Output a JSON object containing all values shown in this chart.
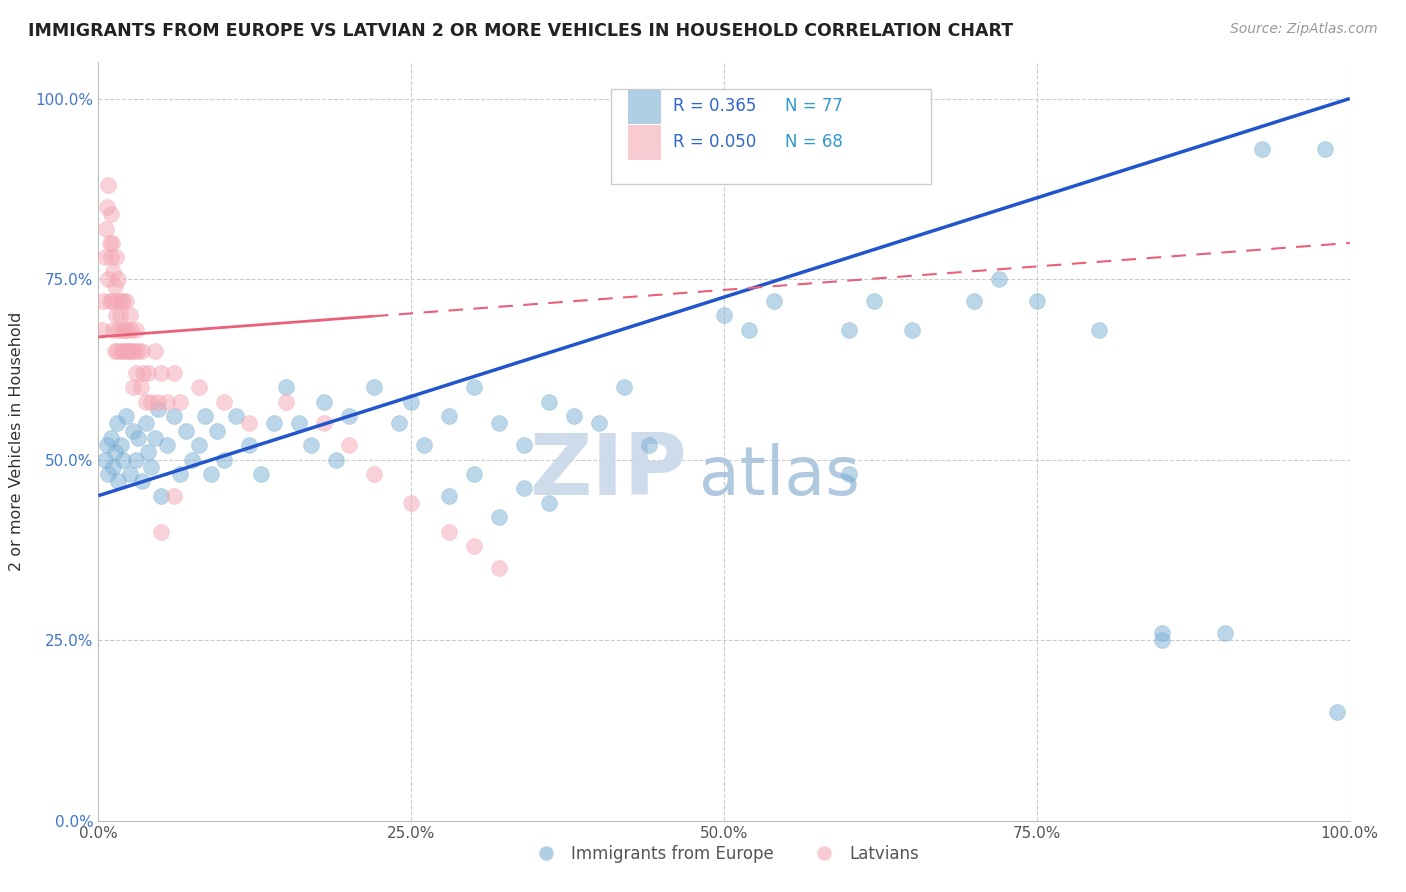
{
  "title": "IMMIGRANTS FROM EUROPE VS LATVIAN 2 OR MORE VEHICLES IN HOUSEHOLD CORRELATION CHART",
  "source": "Source: ZipAtlas.com",
  "ylabel": "2 or more Vehicles in Household",
  "xlim": [
    0.0,
    1.0
  ],
  "ylim": [
    0.0,
    1.05
  ],
  "xticks": [
    0.0,
    0.25,
    0.5,
    0.75,
    1.0
  ],
  "yticks": [
    0.0,
    0.25,
    0.5,
    0.75,
    1.0
  ],
  "xtick_labels": [
    "0.0%",
    "25.0%",
    "50.0%",
    "75.0%",
    "100.0%"
  ],
  "ytick_labels": [
    "0.0%",
    "25.0%",
    "50.0%",
    "75.0%",
    "100.0%"
  ],
  "blue_R": 0.365,
  "blue_N": 77,
  "pink_R": 0.05,
  "pink_N": 68,
  "blue_color": "#7BAFD4",
  "pink_color": "#F4A7B4",
  "blue_line_color": "#2255CC",
  "pink_line_color": "#E8607A",
  "legend_R_color": "#3366CC",
  "legend_N_color": "#3399CC",
  "watermark_ZIP": "#C8D8E8",
  "watermark_atlas": "#A8C4DC",
  "legend_labels": [
    "Immigrants from Europe",
    "Latvians"
  ],
  "figsize": [
    14.06,
    8.92
  ],
  "dpi": 100,
  "blue_x": [
    0.005,
    0.007,
    0.008,
    0.01,
    0.012,
    0.013,
    0.015,
    0.016,
    0.018,
    0.02,
    0.022,
    0.025,
    0.028,
    0.03,
    0.032,
    0.035,
    0.038,
    0.04,
    0.042,
    0.045,
    0.048,
    0.05,
    0.055,
    0.06,
    0.065,
    0.07,
    0.075,
    0.08,
    0.085,
    0.09,
    0.095,
    0.1,
    0.11,
    0.12,
    0.13,
    0.14,
    0.15,
    0.16,
    0.17,
    0.18,
    0.19,
    0.2,
    0.22,
    0.24,
    0.25,
    0.26,
    0.28,
    0.3,
    0.32,
    0.34,
    0.36,
    0.38,
    0.4,
    0.42,
    0.44,
    0.28,
    0.3,
    0.32,
    0.34,
    0.36,
    0.5,
    0.52,
    0.54,
    0.6,
    0.62,
    0.65,
    0.7,
    0.72,
    0.75,
    0.8,
    0.85,
    0.9,
    0.93,
    0.98,
    0.99,
    0.6,
    0.85
  ],
  "blue_y": [
    0.5,
    0.52,
    0.48,
    0.53,
    0.49,
    0.51,
    0.55,
    0.47,
    0.52,
    0.5,
    0.56,
    0.48,
    0.54,
    0.5,
    0.53,
    0.47,
    0.55,
    0.51,
    0.49,
    0.53,
    0.57,
    0.45,
    0.52,
    0.56,
    0.48,
    0.54,
    0.5,
    0.52,
    0.56,
    0.48,
    0.54,
    0.5,
    0.56,
    0.52,
    0.48,
    0.55,
    0.6,
    0.55,
    0.52,
    0.58,
    0.5,
    0.56,
    0.6,
    0.55,
    0.58,
    0.52,
    0.56,
    0.6,
    0.55,
    0.52,
    0.58,
    0.56,
    0.55,
    0.6,
    0.52,
    0.45,
    0.48,
    0.42,
    0.46,
    0.44,
    0.7,
    0.68,
    0.72,
    0.68,
    0.72,
    0.68,
    0.72,
    0.75,
    0.72,
    0.68,
    0.25,
    0.26,
    0.93,
    0.93,
    0.15,
    0.48,
    0.26
  ],
  "pink_x": [
    0.003,
    0.004,
    0.005,
    0.006,
    0.007,
    0.008,
    0.008,
    0.009,
    0.009,
    0.01,
    0.01,
    0.011,
    0.011,
    0.012,
    0.012,
    0.013,
    0.013,
    0.014,
    0.014,
    0.015,
    0.015,
    0.016,
    0.016,
    0.017,
    0.018,
    0.018,
    0.019,
    0.02,
    0.02,
    0.021,
    0.022,
    0.022,
    0.023,
    0.024,
    0.025,
    0.025,
    0.026,
    0.027,
    0.028,
    0.029,
    0.03,
    0.03,
    0.032,
    0.034,
    0.035,
    0.036,
    0.038,
    0.04,
    0.042,
    0.045,
    0.048,
    0.05,
    0.055,
    0.06,
    0.065,
    0.08,
    0.1,
    0.12,
    0.15,
    0.18,
    0.2,
    0.22,
    0.25,
    0.28,
    0.3,
    0.32,
    0.05,
    0.06
  ],
  "pink_y": [
    0.68,
    0.72,
    0.78,
    0.82,
    0.85,
    0.88,
    0.75,
    0.8,
    0.72,
    0.84,
    0.78,
    0.8,
    0.72,
    0.76,
    0.68,
    0.74,
    0.65,
    0.7,
    0.78,
    0.72,
    0.65,
    0.68,
    0.75,
    0.7,
    0.65,
    0.72,
    0.68,
    0.65,
    0.72,
    0.68,
    0.65,
    0.72,
    0.68,
    0.65,
    0.7,
    0.65,
    0.68,
    0.65,
    0.6,
    0.65,
    0.62,
    0.68,
    0.65,
    0.6,
    0.65,
    0.62,
    0.58,
    0.62,
    0.58,
    0.65,
    0.58,
    0.62,
    0.58,
    0.62,
    0.58,
    0.6,
    0.58,
    0.55,
    0.58,
    0.55,
    0.52,
    0.48,
    0.44,
    0.4,
    0.38,
    0.35,
    0.4,
    0.45
  ]
}
